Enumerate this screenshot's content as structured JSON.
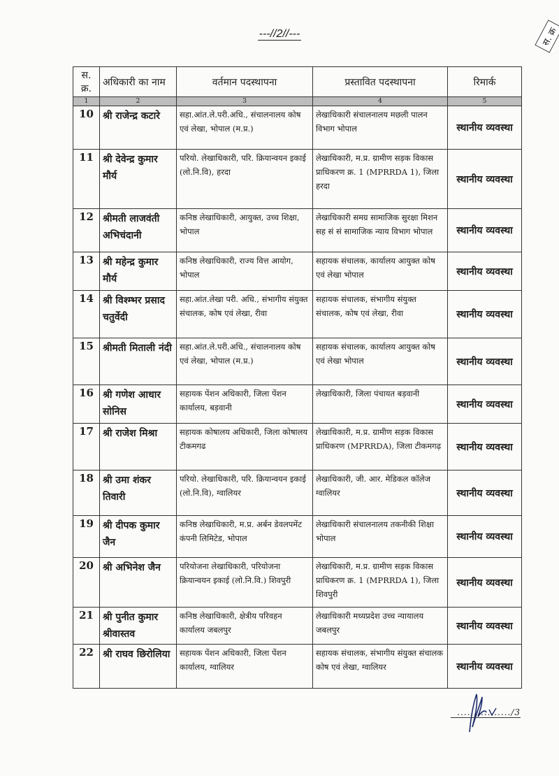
{
  "page_marker": "---//2//---",
  "corner_stamp": "स. क्र",
  "table": {
    "headers": [
      "स. क्र.",
      "अधिकारी का नाम",
      "वर्तमान पदस्थापना",
      "प्रस्तावित पदस्थापना",
      "रिमार्क"
    ],
    "column_numbers": [
      "1",
      "2",
      "3",
      "4",
      "5"
    ],
    "rows": [
      {
        "sn": "10",
        "name": "श्री राजेन्द्र कटारे",
        "current": "सहा.आंत.ले.परी.अधि., संचालनालय कोष एवं लेखा, भोपाल (म.प्र.)",
        "proposed": "लेखाधिकारी संचालनालय मछली पालन विभाग भोपाल",
        "remark": "स्थानीय व्यवस्था"
      },
      {
        "sn": "11",
        "name": "श्री देवेन्द्र कुमार मौर्य",
        "current": "परियो. लेखाधिकारी, परि. क्रियान्वयन इकाई (लो.नि.वि), हरदा",
        "proposed": "लेखाधिकारी, म.प्र. ग्रामीण सड़क विकास प्राधिकरण क्र. 1 (MPRRDA 1), जिला हरदा",
        "remark": "स्थानीय व्यवस्था"
      },
      {
        "sn": "12",
        "name": "श्रीमती लाजवंती अभिचंदानी",
        "current": "कनिष्ठ लेखाधिकारी, आयुक्त, उच्च शिक्षा, भोपाल",
        "proposed": "लेखाधिकारी समग्र सामाजिक सुरक्षा मिशन सह सं सं सामाजिक न्याय विभाग भोपाल",
        "remark": "स्थानीय व्यवस्था"
      },
      {
        "sn": "13",
        "name": "श्री महेन्द्र कुमार मौर्य",
        "current": "कनिष्ठ लेखाधिकारी, राज्य वित्त आयोग, भोपाल",
        "proposed": "सहायक संचालक, कार्यालय आयुक्त कोष एवं लेखा भोपाल",
        "remark": "स्थानीय व्यवस्था"
      },
      {
        "sn": "14",
        "name": "श्री विश्म्भर प्रसाद चतुर्वेदी",
        "current": "सहा.आंत.लेखा परी. अधि., संभागीय संयुक्त संचालक, कोष एवं लेखा, रीवा",
        "proposed": "सहायक संचालक, संभागीय संयुक्त संचालक, कोष एवं लेखा, रीवा",
        "remark": "स्थानीय व्यवस्था"
      },
      {
        "sn": "15",
        "name": "श्रीमती मिताली नंदी",
        "current": "सहा.आंत.ले.परी.अधि., संचालनालय कोष एवं लेखा, भोपाल (म.प्र.)",
        "proposed": "सहायक संचालक, कार्यालय आयुक्त कोष एवं लेखा भोपाल",
        "remark": "स्थानीय व्यवस्था"
      },
      {
        "sn": "16",
        "name": "श्री गणेश आधार सोनिस",
        "current": "सहायक पेंशन अधिकारी, जिला पेंशन कार्यालय, बड़वानी",
        "proposed": "लेखाधिकारी, जिला पंचायत बड़वानी",
        "remark": "स्थानीय व्यवस्था"
      },
      {
        "sn": "17",
        "name": "श्री राजेश मिश्रा",
        "current": "सहायक कोषालय अधिकारी, जिला कोषालय टीकमगढ",
        "proposed": "लेखाधिकारी, म.प्र. ग्रामीण सड़क विकास प्राधिकरण (MPRRDA), जिला टीकमगढ़",
        "remark": "स्थानीय व्यवस्था"
      },
      {
        "sn": "18",
        "name": "श्री उमा शंकर तिवारी",
        "current": "परियो. लेखाधिकारी, परि. क्रियान्वयन इकाई (लो.नि.वि), ग्वालियर",
        "proposed": "लेखाधिकारी, जी. आर. मेडिकल कॉलेज ग्वालियर",
        "remark": "स्थानीय व्यवस्था"
      },
      {
        "sn": "19",
        "name": "श्री दीपक कुमार जैन",
        "current": "कनिष्ठ लेखाधिकारी, म.प्र. अर्बन डेवलपमेंट कंपनी लिमिटेड, भोपाल",
        "proposed": "लेखाधिकारी संचालनालय तकनीकी शिक्षा भोपाल",
        "remark": "स्थानीय व्यवस्था"
      },
      {
        "sn": "20",
        "name": "श्री अभिनेश जैन",
        "current": "परियोजना लेखाधिकारी, परियोजना क्रियान्वयन इकाई (लो.नि.वि.) शिवपुरी",
        "proposed": "लेखाधिकारी, म.प्र. ग्रामीण सड़क विकास प्राधिकरण क्र. 1 (MPRRDA 1), जिला शिवपुरी",
        "remark": "स्थानीय व्यवस्था"
      },
      {
        "sn": "21",
        "name": "श्री पुनीत कुमार श्रीवास्तव",
        "current": "कनिष्ठ लेखाधिकारी, क्षेत्रीय परिवहन कार्यालय जबलपुर",
        "proposed": "लेखाधिकारी मध्यप्रदेश उच्च न्यायालय जबलपुर",
        "remark": "स्थानीय व्यवस्था"
      },
      {
        "sn": "22",
        "name": "श्री राघव छिरोलिया",
        "current": "सहायक पेंशन अधिकारी, जिला पेंशन कार्यालय, ग्वालियर",
        "proposed": "सहायक संचालक, संभागीय संयुक्त संचालक कोष एवं लेखा, ग्वालियर",
        "remark": "स्थानीय व्यवस्था"
      }
    ]
  },
  "footer": "................/3"
}
